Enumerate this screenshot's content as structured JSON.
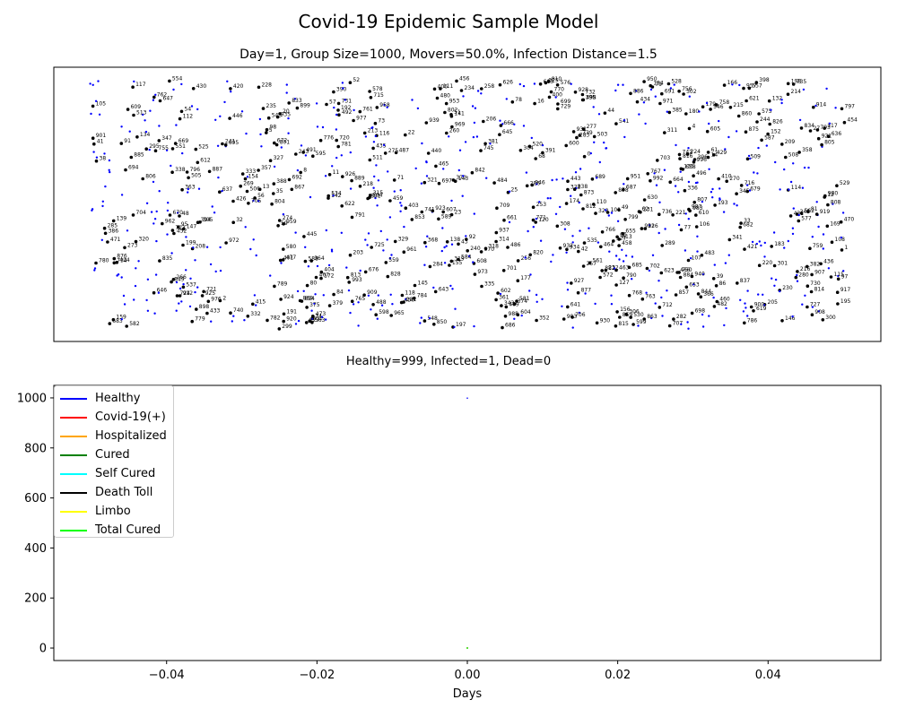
{
  "page": {
    "title": "Covid-19 Epidemic Sample Model",
    "subtitle": "Day=1, Group Size=1000, Movers=50.0%, Infection Distance=1.5",
    "counts_text": "Healthy=999, Infected=1, Dead=0"
  },
  "chart_data": [
    {
      "type": "scatter",
      "description_key": "population",
      "title": "Day=1, Group Size=1000, Movers=50.0%, Infection Distance=1.5",
      "group_size": 1000,
      "movers_fraction": 0.5,
      "axes": {
        "visible": false
      },
      "grid": false,
      "point_colors": {
        "mover": "#0000ff",
        "stationary": "#000000"
      },
      "note_labels": "Stationary individuals (black dots) carry small numeric ID labels."
    },
    {
      "type": "line",
      "xlabel": "Days",
      "ylabel": "",
      "xlim": [
        -0.055,
        0.055
      ],
      "ylim": [
        -50,
        1050
      ],
      "x_ticks": [
        "−0.04",
        "−0.02",
        "0.00",
        "0.02",
        "0.04"
      ],
      "x_tick_values": [
        -0.04,
        -0.02,
        0.0,
        0.02,
        0.04
      ],
      "y_ticks": [
        "0",
        "200",
        "400",
        "600",
        "800",
        "1000"
      ],
      "y_tick_values": [
        0,
        200,
        400,
        600,
        800,
        1000
      ],
      "legend_placement": "upper-left",
      "grid": false,
      "series": [
        {
          "name": "Healthy",
          "color": "#0000ff",
          "x": [
            0
          ],
          "values": [
            999
          ]
        },
        {
          "name": "Covid-19(+)",
          "color": "#ff0000",
          "x": [
            0
          ],
          "values": [
            1
          ]
        },
        {
          "name": "Hospitalized",
          "color": "#ffa500",
          "x": [
            0
          ],
          "values": [
            0
          ]
        },
        {
          "name": "Cured",
          "color": "#008000",
          "x": [
            0
          ],
          "values": [
            0
          ]
        },
        {
          "name": "Self Cured",
          "color": "#00ffff",
          "x": [
            0
          ],
          "values": [
            0
          ]
        },
        {
          "name": "Death Toll",
          "color": "#000000",
          "x": [
            0
          ],
          "values": [
            0
          ]
        },
        {
          "name": "Limbo",
          "color": "#ffff00",
          "x": [
            0
          ],
          "values": [
            0
          ]
        },
        {
          "name": "Total Cured",
          "color": "#00ff00",
          "x": [
            0
          ],
          "values": [
            0
          ]
        }
      ]
    }
  ]
}
